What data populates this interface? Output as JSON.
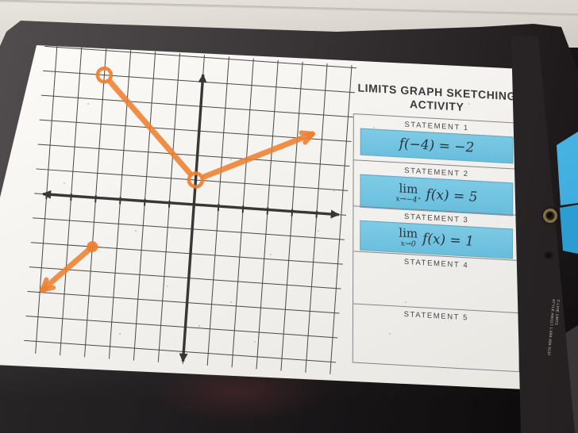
{
  "photo": {
    "wall_color": "#dcd8d1",
    "clipboard": {
      "surface_color": "#2e2b2c",
      "grommet": "brass-grommet",
      "side_label_line1": "C-LINE 23073",
      "side_label_line2": "STYLE #80117 1-888-480-3137"
    },
    "blue_paper_color": "#3bb0e2"
  },
  "worksheet": {
    "title_line1": "LIMITS GRAPH SKETCHING",
    "title_line2": "ACTIVITY",
    "highlight_color": "#72c4e2",
    "statements": [
      {
        "label": "STATEMENT 1",
        "math_text": "f(−4) = −2",
        "highlighted": true
      },
      {
        "label": "STATEMENT 2",
        "lim": "lim",
        "lim_sub": "x→−4⁺",
        "math_text": "f(x) = 5",
        "highlighted": true
      },
      {
        "label": "STATEMENT 3",
        "lim": "lim",
        "lim_sub": "x→0",
        "math_text": "f(x) = 1",
        "highlighted": true
      },
      {
        "label": "STATEMENT 4",
        "highlighted": false
      },
      {
        "label": "STATEMENT 5",
        "highlighted": false
      }
    ]
  },
  "chart_data": {
    "type": "line",
    "title": "",
    "xlabel": "",
    "ylabel": "",
    "axes": {
      "x_range": [
        -6,
        6
      ],
      "y_range": [
        -6,
        6
      ],
      "grid": true,
      "unit": 1,
      "arrows": true
    },
    "color": "#ee7f2f",
    "pieces": [
      {
        "name": "left-ray",
        "points": [
          [
            -5.9,
            -3.9
          ],
          [
            -4,
            -2
          ]
        ],
        "start_marker": "arrow",
        "end_marker": "closed-dot"
      },
      {
        "name": "middle-segment",
        "points": [
          [
            -4,
            5
          ],
          [
            0,
            1
          ]
        ],
        "start_marker": "open-circle",
        "end_marker": "open-circle"
      },
      {
        "name": "right-ray",
        "points": [
          [
            0,
            1
          ],
          [
            4.6,
            3.2
          ]
        ],
        "start_marker": "open-circle",
        "end_marker": "arrow"
      }
    ]
  }
}
